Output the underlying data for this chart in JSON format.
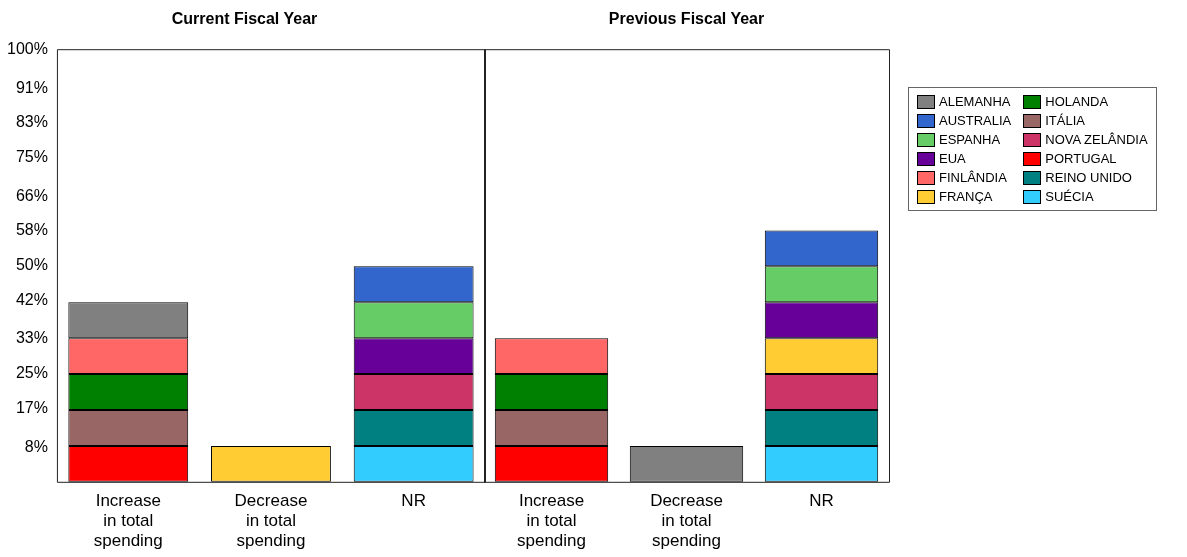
{
  "chart_data": [
    {
      "type": "bar",
      "title": "Current Fiscal Year",
      "stacked": true,
      "legend": "right",
      "categories": [
        "Increase in total spending",
        "Decrease in total spending",
        "NR"
      ],
      "ylim": [
        0,
        100
      ],
      "yticks": [
        {
          "value": 8,
          "label": "8%"
        },
        {
          "value": 17,
          "label": "17%"
        },
        {
          "value": 25,
          "label": "25%"
        },
        {
          "value": 33,
          "label": "33%"
        },
        {
          "value": 42,
          "label": "42%"
        },
        {
          "value": 50,
          "label": "50%"
        },
        {
          "value": 58,
          "label": "58%"
        },
        {
          "value": 66,
          "label": "66%"
        },
        {
          "value": 75,
          "label": "75%"
        },
        {
          "value": 83,
          "label": "83%"
        },
        {
          "value": 91,
          "label": "91%"
        },
        {
          "value": 100,
          "label": "100%"
        }
      ],
      "series": [
        {
          "name": "PORTUGAL",
          "color": "#ff0000",
          "values": [
            8.3,
            null,
            null
          ]
        },
        {
          "name": "ITÁLIA",
          "color": "#996666",
          "values": [
            8.3,
            null,
            null
          ]
        },
        {
          "name": "HOLANDA",
          "color": "#008000",
          "values": [
            8.3,
            null,
            null
          ]
        },
        {
          "name": "FINLÂNDIA",
          "color": "#ff6666",
          "values": [
            8.3,
            null,
            null
          ]
        },
        {
          "name": "ALEMANHA",
          "color": "#808080",
          "values": [
            8.3,
            null,
            null
          ]
        },
        {
          "name": "SUÉCIA",
          "color": "#33ccff",
          "values": [
            null,
            null,
            8.3
          ]
        },
        {
          "name": "REINO UNIDO",
          "color": "#008080",
          "values": [
            null,
            null,
            8.3
          ]
        },
        {
          "name": "NOVA ZELÂNDIA",
          "color": "#cc3366",
          "values": [
            null,
            null,
            8.3
          ]
        },
        {
          "name": "FRANÇA",
          "color": "#ffcc33",
          "values": [
            null,
            8.3,
            null
          ]
        },
        {
          "name": "EUA",
          "color": "#660099",
          "values": [
            null,
            null,
            8.3
          ]
        },
        {
          "name": "ESPANHA",
          "color": "#66cc66",
          "values": [
            null,
            null,
            8.3
          ]
        },
        {
          "name": "AUSTRALIA",
          "color": "#3366cc",
          "values": [
            null,
            null,
            8.3
          ]
        }
      ]
    },
    {
      "type": "bar",
      "title": "Previous Fiscal Year",
      "stacked": true,
      "tick_labels": "x",
      "legend": "right",
      "categories": [
        "Increase in total spending",
        "Decrease in total spending",
        "NR"
      ],
      "ylim": [
        0,
        100
      ],
      "series": [
        {
          "name": "PORTUGAL",
          "color": "#ff0000",
          "values": [
            8.3,
            null,
            null
          ]
        },
        {
          "name": "ITÁLIA",
          "color": "#996666",
          "values": [
            8.3,
            null,
            null
          ]
        },
        {
          "name": "HOLANDA",
          "color": "#008000",
          "values": [
            8.3,
            null,
            null
          ]
        },
        {
          "name": "FINLÂNDIA",
          "color": "#ff6666",
          "values": [
            8.3,
            null,
            null
          ]
        },
        {
          "name": "ALEMANHA",
          "color": "#808080",
          "values": [
            null,
            8.3,
            null
          ]
        },
        {
          "name": "SUÉCIA",
          "color": "#33ccff",
          "values": [
            null,
            null,
            8.3
          ]
        },
        {
          "name": "REINO UNIDO",
          "color": "#008080",
          "values": [
            null,
            null,
            8.3
          ]
        },
        {
          "name": "NOVA ZELÂNDIA",
          "color": "#cc3366",
          "values": [
            null,
            null,
            8.3
          ]
        },
        {
          "name": "FRANÇA",
          "color": "#ffcc33",
          "values": [
            null,
            null,
            8.3
          ]
        },
        {
          "name": "EUA",
          "color": "#660099",
          "values": [
            null,
            null,
            8.3
          ]
        },
        {
          "name": "ESPANHA",
          "color": "#66cc66",
          "values": [
            null,
            null,
            8.3
          ]
        },
        {
          "name": "AUSTRALIA",
          "color": "#3366cc",
          "values": [
            null,
            null,
            8.3
          ]
        }
      ]
    }
  ]
}
